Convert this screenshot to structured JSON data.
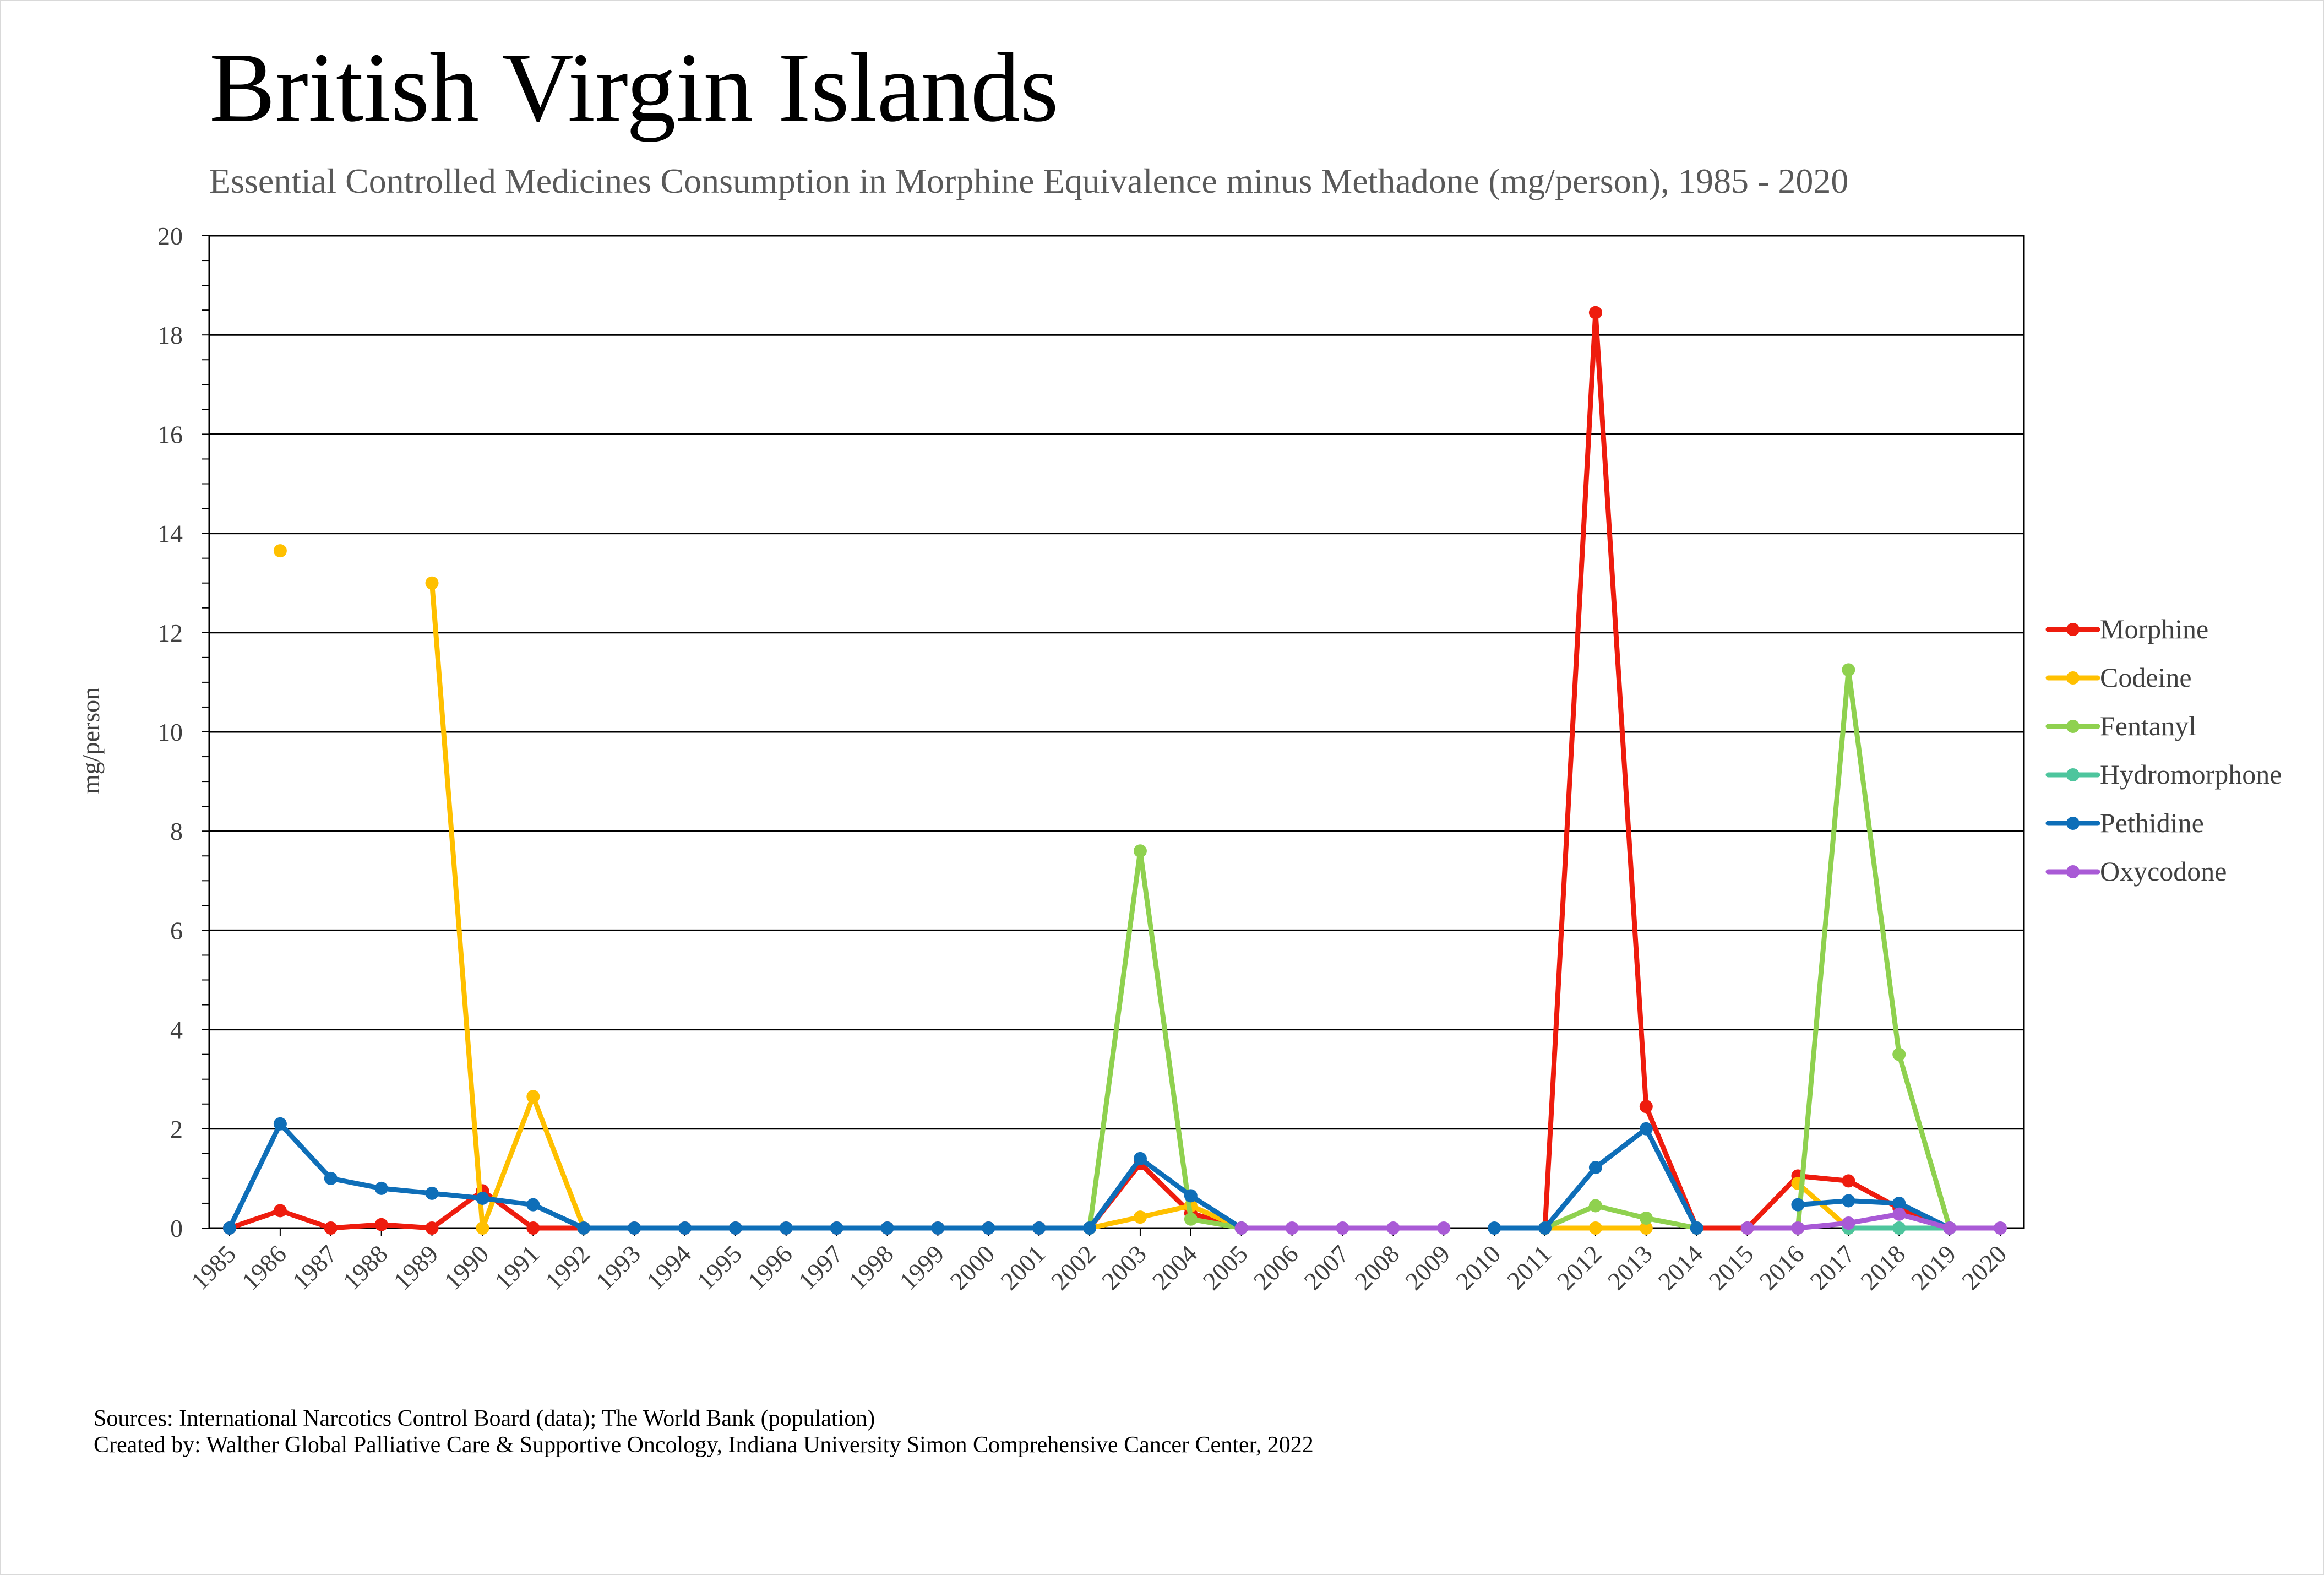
{
  "title": "British Virgin Islands",
  "subtitle": "Essential Controlled Medicines Consumption in Morphine Equivalence minus Methadone (mg/person), 1985 - 2020",
  "sources": "Sources: International Narcotics Control Board (data); The World Bank (population)",
  "created_by": "Created by: Walther Global Palliative Care & Supportive Oncology, Indiana University Simon Comprehensive Cancer Center, 2022",
  "chart_data": {
    "type": "line",
    "ylabel": "mg/person",
    "ylim": [
      0,
      20
    ],
    "yticks": [
      0,
      2,
      4,
      6,
      8,
      10,
      12,
      14,
      16,
      18,
      20
    ],
    "grid": true,
    "legend_position": "right",
    "categories": [
      "1985",
      "1986",
      "1987",
      "1988",
      "1989",
      "1990",
      "1991",
      "1992",
      "1993",
      "1994",
      "1995",
      "1996",
      "1997",
      "1998",
      "1999",
      "2000",
      "2001",
      "2002",
      "2003",
      "2004",
      "2005",
      "2006",
      "2007",
      "2008",
      "2009",
      "2010",
      "2011",
      "2012",
      "2013",
      "2014",
      "2015",
      "2016",
      "2017",
      "2018",
      "2019",
      "2020"
    ],
    "series": [
      {
        "name": "Morphine",
        "color": "#ee1c0e",
        "values": [
          0,
          0.35,
          0,
          0.07,
          0,
          0.75,
          0,
          0,
          0,
          0,
          0,
          0,
          0,
          0,
          0,
          0,
          0,
          0,
          1.3,
          0.3,
          0,
          null,
          null,
          null,
          null,
          null,
          0,
          18.45,
          2.45,
          0,
          0,
          1.05,
          0.95,
          0.4,
          0,
          null
        ]
      },
      {
        "name": "Codeine",
        "color": "#ffc000",
        "values": [
          null,
          13.65,
          null,
          null,
          13.0,
          0,
          2.65,
          0,
          null,
          null,
          null,
          null,
          null,
          null,
          null,
          null,
          null,
          0,
          0.22,
          0.45,
          0,
          null,
          null,
          null,
          null,
          null,
          0,
          0,
          0,
          null,
          null,
          0.9,
          0,
          null,
          null,
          null
        ]
      },
      {
        "name": "Fentanyl",
        "color": "#8fd14f",
        "values": [
          null,
          null,
          null,
          null,
          null,
          null,
          null,
          null,
          null,
          null,
          null,
          null,
          null,
          null,
          null,
          null,
          null,
          0,
          7.6,
          0.18,
          0,
          null,
          null,
          null,
          null,
          null,
          0,
          0.45,
          0.2,
          0,
          null,
          0,
          11.25,
          3.5,
          0,
          null
        ]
      },
      {
        "name": "Hydromorphone",
        "color": "#4dc59d",
        "values": [
          null,
          null,
          null,
          null,
          null,
          null,
          null,
          null,
          null,
          null,
          null,
          null,
          null,
          null,
          null,
          null,
          null,
          null,
          null,
          null,
          null,
          null,
          null,
          null,
          null,
          null,
          null,
          null,
          null,
          null,
          null,
          null,
          0,
          0,
          0,
          null
        ]
      },
      {
        "name": "Pethidine",
        "color": "#0e6eb8",
        "values": [
          0,
          2.1,
          1.0,
          0.8,
          0.7,
          0.6,
          0.47,
          0,
          0,
          0,
          0,
          0,
          0,
          0,
          0,
          0,
          0,
          0,
          1.4,
          0.65,
          0,
          null,
          null,
          null,
          null,
          0,
          0,
          1.22,
          2.0,
          0,
          null,
          0.47,
          0.55,
          0.5,
          0,
          null
        ]
      },
      {
        "name": "Oxycodone",
        "color": "#a95ad6",
        "values": [
          null,
          null,
          null,
          null,
          null,
          null,
          null,
          null,
          null,
          null,
          null,
          null,
          null,
          null,
          null,
          null,
          null,
          null,
          null,
          null,
          0,
          0,
          0,
          0,
          0,
          null,
          null,
          null,
          null,
          null,
          0,
          0,
          0.1,
          0.28,
          0,
          0
        ]
      }
    ]
  }
}
